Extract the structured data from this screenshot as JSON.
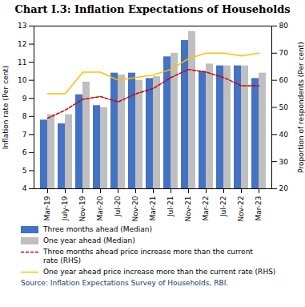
{
  "chart_data": {
    "type": "bar",
    "title": "Chart I.3: Inflation Expectations of Households",
    "categories": [
      "Mar-19",
      "July-19",
      "Nov-19",
      "Mar-20",
      "Jul-20",
      "Nov-20",
      "Mar-21",
      "Jul-21",
      "Nov-21",
      "Mar-22",
      "Jul-22",
      "Nov-22",
      "Mar-23"
    ],
    "series": [
      {
        "name": "Three months ahead (Median)",
        "type": "bar",
        "color": "#4472C4",
        "values": [
          7.8,
          7.6,
          9.2,
          8.6,
          10.4,
          10.4,
          10.1,
          11.3,
          12.2,
          10.5,
          10.8,
          10.8,
          10.1
        ]
      },
      {
        "name": "One year ahead (Median)",
        "type": "bar",
        "color": "#BFBFBF",
        "values": [
          8.1,
          8.1,
          9.9,
          8.5,
          10.3,
          10.0,
          10.2,
          11.5,
          12.7,
          10.9,
          10.8,
          10.8,
          10.4
        ]
      },
      {
        "name": "Three months ahead price increase more than the current\nrate (RHS)",
        "type": "line",
        "axis": "y2",
        "color": "#CC0000",
        "line_style": "dashed",
        "values": [
          46,
          49,
          53,
          54,
          52,
          55,
          57,
          61,
          64,
          63,
          61,
          58,
          58
        ]
      },
      {
        "name": "One year ahead price increase more than the current rate (RHS)",
        "type": "line",
        "axis": "y2",
        "color": "#FFC000",
        "line_style": "solid",
        "values": [
          55,
          55,
          63,
          63,
          60,
          61,
          62,
          64,
          68,
          70,
          70,
          69,
          70
        ]
      }
    ],
    "ylabel": "Inflation rate (Per cent)",
    "y2label": "Proportion of respondents (Per cent)",
    "ylim": [
      4,
      13
    ],
    "yticks": [
      4,
      5,
      6,
      7,
      8,
      9,
      10,
      11,
      12,
      13
    ],
    "y2lim": [
      20,
      80
    ],
    "y2ticks": [
      20,
      30,
      40,
      50,
      60,
      70,
      80
    ],
    "legend": "bottom",
    "caption": "Source: Inflation Expectations Survey of Households, RBI."
  }
}
